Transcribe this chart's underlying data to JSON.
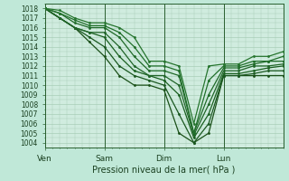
{
  "xlabel": "Pression niveau de la mer( hPa )",
  "ylim": [
    1003.5,
    1018.5
  ],
  "yticks": [
    1004,
    1005,
    1006,
    1007,
    1008,
    1009,
    1010,
    1011,
    1012,
    1013,
    1014,
    1015,
    1016,
    1017,
    1018
  ],
  "xtick_labels": [
    "Ven",
    "Sam",
    "Dim",
    "Lun"
  ],
  "xtick_positions": [
    0,
    24,
    48,
    72
  ],
  "xlim": [
    0,
    96
  ],
  "bg_color": "#c0e8d8",
  "plot_bg_color": "#d0ecdf",
  "grid_color": "#a0c8b0",
  "series": [
    [
      0,
      1018,
      6,
      1017,
      12,
      1016,
      18,
      1014.5,
      24,
      1013,
      30,
      1011,
      36,
      1010,
      42,
      1010,
      48,
      1009.5,
      54,
      1005,
      60,
      1004,
      66,
      1005,
      72,
      1011,
      78,
      1011,
      84,
      1011,
      90,
      1011,
      96,
      1011
    ],
    [
      0,
      1018,
      6,
      1017,
      12,
      1016,
      18,
      1015,
      24,
      1014,
      30,
      1012,
      36,
      1011,
      42,
      1010.5,
      48,
      1010,
      54,
      1007,
      60,
      1004,
      66,
      1006,
      72,
      1011,
      78,
      1011,
      84,
      1011.2,
      90,
      1011.5,
      96,
      1011.5
    ],
    [
      0,
      1018,
      6,
      1017,
      12,
      1016,
      18,
      1015.5,
      24,
      1015,
      30,
      1013,
      36,
      1011.5,
      42,
      1011,
      48,
      1010.5,
      54,
      1009,
      60,
      1004.5,
      66,
      1007,
      72,
      1011.2,
      78,
      1011.2,
      84,
      1011.5,
      90,
      1011.8,
      96,
      1012
    ],
    [
      0,
      1018,
      6,
      1017,
      12,
      1016,
      18,
      1015.5,
      24,
      1015.5,
      30,
      1014,
      36,
      1012,
      42,
      1011,
      48,
      1011,
      54,
      1010,
      60,
      1004.8,
      66,
      1008,
      72,
      1011.5,
      78,
      1011.5,
      84,
      1012,
      90,
      1012,
      96,
      1012.2
    ],
    [
      0,
      1018,
      6,
      1017.5,
      12,
      1016.5,
      18,
      1016,
      24,
      1016,
      30,
      1015,
      36,
      1013,
      42,
      1011.5,
      48,
      1011.5,
      54,
      1011,
      60,
      1005,
      66,
      1009,
      72,
      1011.8,
      78,
      1011.8,
      84,
      1012.2,
      90,
      1012.5,
      96,
      1012.5
    ],
    [
      0,
      1018,
      6,
      1017.5,
      12,
      1016.8,
      18,
      1016.2,
      24,
      1016.2,
      30,
      1015.5,
      36,
      1014,
      42,
      1012,
      48,
      1012,
      54,
      1011.5,
      60,
      1005,
      66,
      1010.5,
      72,
      1012,
      78,
      1012,
      84,
      1012.5,
      90,
      1012.5,
      96,
      1013
    ],
    [
      0,
      1018,
      6,
      1017.8,
      12,
      1017,
      18,
      1016.5,
      24,
      1016.5,
      30,
      1016,
      36,
      1015,
      42,
      1012.5,
      48,
      1012.5,
      54,
      1012,
      60,
      1006,
      66,
      1012,
      72,
      1012.2,
      78,
      1012.2,
      84,
      1013,
      90,
      1013,
      96,
      1013.5
    ]
  ]
}
